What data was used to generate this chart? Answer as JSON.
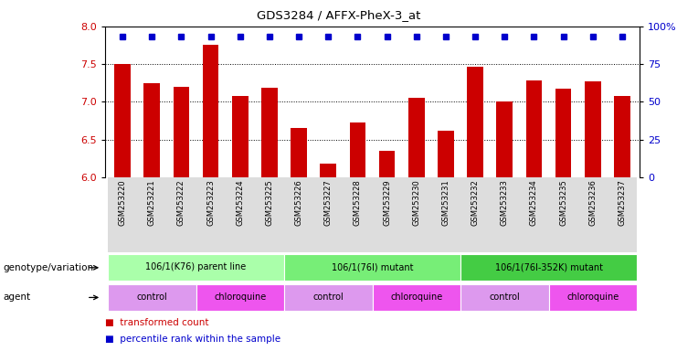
{
  "title": "GDS3284 / AFFX-PheX-3_at",
  "samples": [
    "GSM253220",
    "GSM253221",
    "GSM253222",
    "GSM253223",
    "GSM253224",
    "GSM253225",
    "GSM253226",
    "GSM253227",
    "GSM253228",
    "GSM253229",
    "GSM253230",
    "GSM253231",
    "GSM253232",
    "GSM253233",
    "GSM253234",
    "GSM253235",
    "GSM253236",
    "GSM253237"
  ],
  "bar_values": [
    7.5,
    7.25,
    7.2,
    7.75,
    7.08,
    7.18,
    6.65,
    6.18,
    6.72,
    6.35,
    7.05,
    6.62,
    7.47,
    7.0,
    7.28,
    7.17,
    7.27,
    7.08
  ],
  "bar_color": "#cc0000",
  "percentile_color": "#0000cc",
  "ylim_left": [
    6.0,
    8.0
  ],
  "ylim_right": [
    0,
    100
  ],
  "yticks_left": [
    6.0,
    6.5,
    7.0,
    7.5,
    8.0
  ],
  "yticks_right": [
    0,
    25,
    50,
    75,
    100
  ],
  "ytick_right_labels": [
    "0",
    "25",
    "50",
    "75",
    "100%"
  ],
  "dotted_lines": [
    6.5,
    7.0,
    7.5
  ],
  "genotype_groups": [
    {
      "label": "106/1(K76) parent line",
      "start": 0,
      "end": 5,
      "color": "#aaffaa"
    },
    {
      "label": "106/1(76I) mutant",
      "start": 6,
      "end": 11,
      "color": "#77ee77"
    },
    {
      "label": "106/1(76I-352K) mutant",
      "start": 12,
      "end": 17,
      "color": "#44cc44"
    }
  ],
  "agent_groups": [
    {
      "label": "control",
      "start": 0,
      "end": 2,
      "color": "#dd99ee"
    },
    {
      "label": "chloroquine",
      "start": 3,
      "end": 5,
      "color": "#ee55ee"
    },
    {
      "label": "control",
      "start": 6,
      "end": 8,
      "color": "#dd99ee"
    },
    {
      "label": "chloroquine",
      "start": 9,
      "end": 11,
      "color": "#ee55ee"
    },
    {
      "label": "control",
      "start": 12,
      "end": 14,
      "color": "#dd99ee"
    },
    {
      "label": "chloroquine",
      "start": 15,
      "end": 17,
      "color": "#ee55ee"
    }
  ],
  "legend_items": [
    {
      "label": "transformed count",
      "color": "#cc0000"
    },
    {
      "label": "percentile rank within the sample",
      "color": "#0000cc"
    }
  ],
  "genotype_label": "genotype/variation",
  "agent_label": "agent",
  "xlabel_color": "#000000",
  "bg_color": "#ffffff"
}
